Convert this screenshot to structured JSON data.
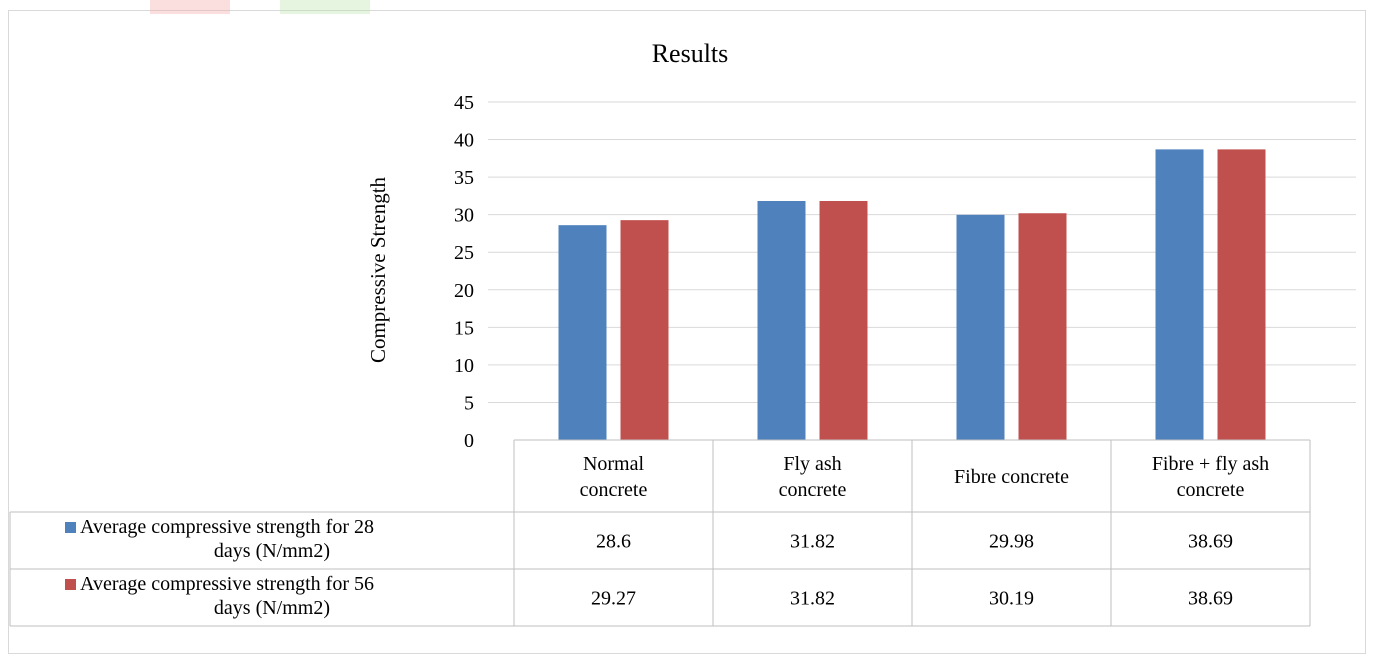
{
  "chart_data": {
    "type": "bar",
    "title": "Results",
    "ylabel": "Compressive Strength",
    "xlabel": "",
    "ylim": [
      0,
      45
    ],
    "ytick_step": 5,
    "ytick_labels": [
      "0",
      "5",
      "10",
      "15",
      "20",
      "25",
      "30",
      "35",
      "40",
      "45"
    ],
    "categories": [
      [
        "Normal",
        "concrete"
      ],
      [
        "Fly ash",
        "concrete"
      ],
      [
        "Fibre concrete"
      ],
      [
        "Fibre + fly ash",
        "concrete"
      ]
    ],
    "series": [
      {
        "name": [
          "Average compressive strength for 28",
          "days (N/mm2)"
        ],
        "color": "#4f81bd",
        "values": [
          28.6,
          31.82,
          29.98,
          38.69
        ],
        "labels": [
          "28.6",
          "31.82",
          "29.98",
          "38.69"
        ]
      },
      {
        "name": [
          "Average compressive strength for 56",
          "days (N/mm2)"
        ],
        "color": "#c0504d",
        "values": [
          29.27,
          31.82,
          30.19,
          38.69
        ],
        "labels": [
          "29.27",
          "31.82",
          "30.19",
          "38.69"
        ]
      }
    ],
    "grid": true,
    "legend": "data-table"
  }
}
